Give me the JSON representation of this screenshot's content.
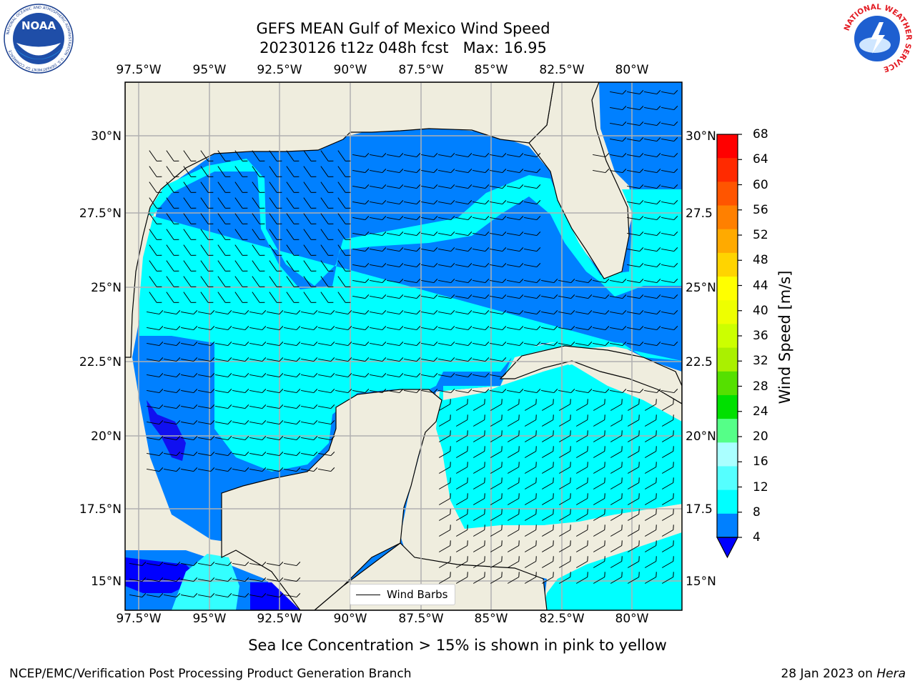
{
  "header": {
    "title_line1": "GEFS MEAN Gulf of Mexico Wind Speed",
    "title_line2": "20230126 t12z 048h fcst   Max: 16.95"
  },
  "logos": {
    "noaa_text": "NOAA",
    "noaa_ring_text": "NATIONAL OCEANIC AND ATMOSPHERIC ADMINISTRATION · U.S. DEPARTMENT OF COMMERCE",
    "nws_ring_text": "NATIONAL WEATHER SERVICE"
  },
  "map": {
    "lon_labels": [
      "97.5°W",
      "95°W",
      "92.5°W",
      "90°W",
      "87.5°W",
      "85°W",
      "82.5°W",
      "80°W"
    ],
    "lat_labels_left": [
      "30°N",
      "27.5°N",
      "25°N",
      "22.5°N",
      "20°N",
      "17.5°N",
      "15°N"
    ],
    "lat_labels_right": [
      "30°N",
      "27.5",
      "25°N",
      "22.5",
      "20°N",
      "17.5",
      "15°N"
    ],
    "legend_label": "Wind Barbs",
    "land_color": "#efedde",
    "ocean_low_color": "#0080ff",
    "ocean_mid_color": "#00ffff"
  },
  "colorbar": {
    "title": "Wind Speed [m/s]",
    "ticks": [
      "68",
      "64",
      "60",
      "56",
      "52",
      "48",
      "44",
      "40",
      "36",
      "32",
      "28",
      "24",
      "20",
      "16",
      "12",
      "8",
      "4"
    ],
    "colors_top_to_bottom": [
      "#ff0000",
      "#ff2a00",
      "#ff5500",
      "#ff8000",
      "#ffaa00",
      "#ffd400",
      "#ffff00",
      "#eeff00",
      "#ccff00",
      "#aaf000",
      "#55e000",
      "#00e000",
      "#55ff88",
      "#aaffff",
      "#55ffff",
      "#00ffff",
      "#0080ff"
    ],
    "extend_color": "#0000ff"
  },
  "note": "Sea Ice Concentration > 15% is shown in pink to yellow",
  "footer": {
    "left": "NCEP/EMC/Verification Post Processing Product Generation Branch",
    "date": "28 Jan 2023 on ",
    "machine": "Hera"
  }
}
